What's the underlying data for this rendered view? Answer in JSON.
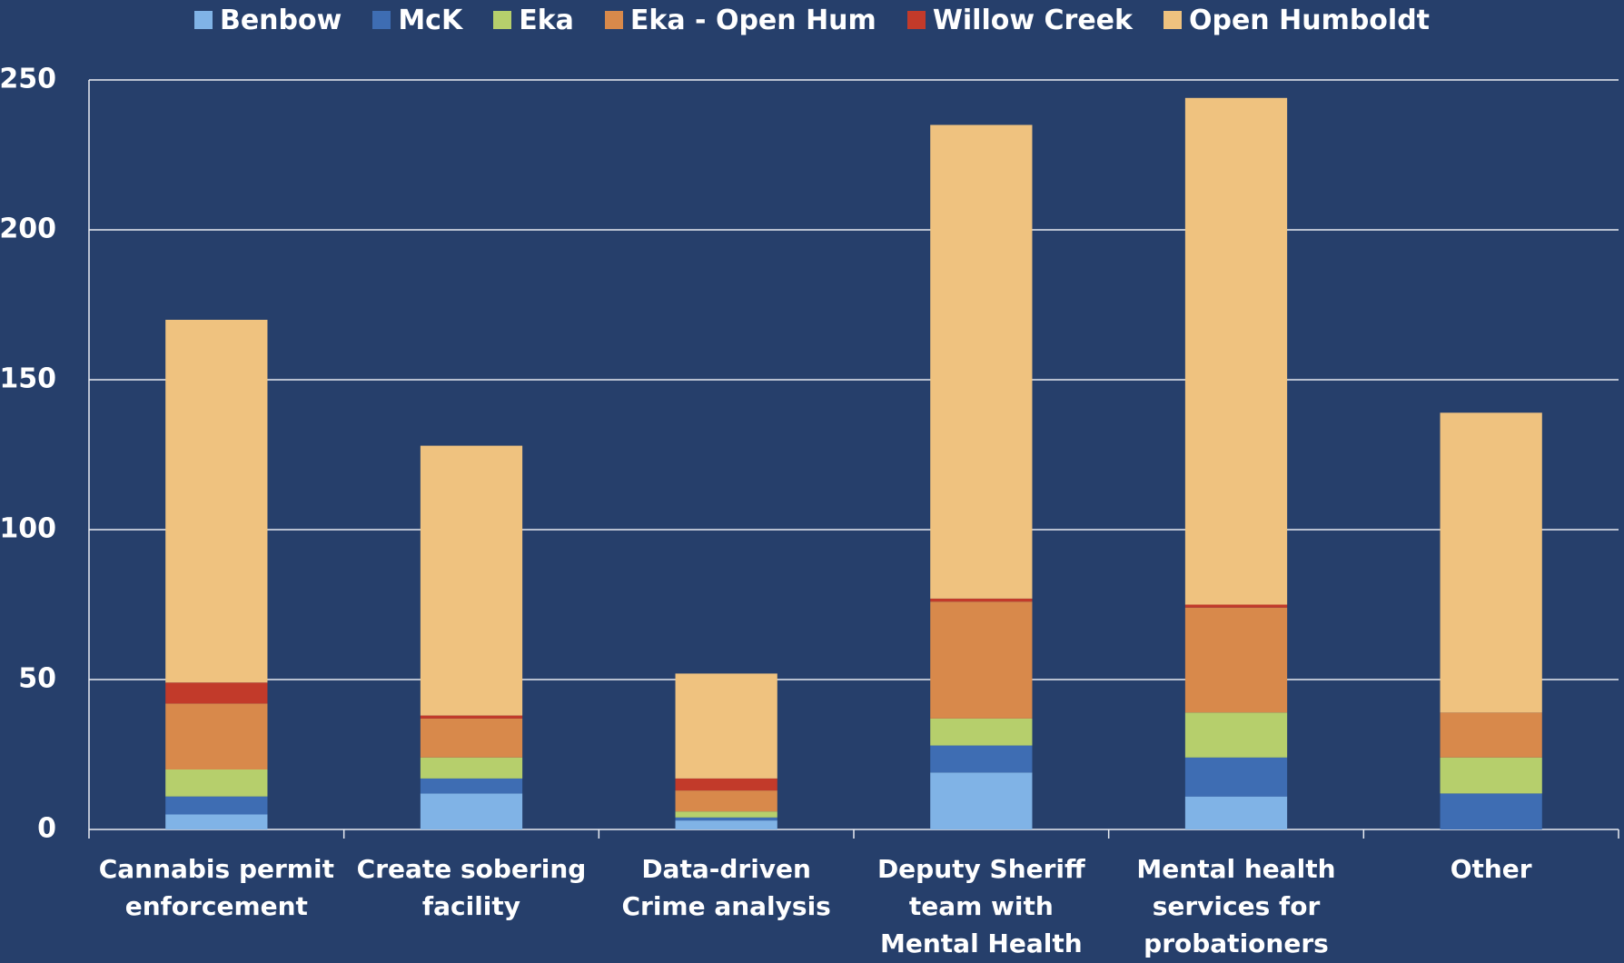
{
  "chart_data": {
    "type": "stacked_bar",
    "categories": [
      "Cannabis permit enforcement",
      "Create sobering facility",
      "Data-driven Crime analysis",
      "Deputy Sheriff team with Mental Health",
      "Mental health services for probationers",
      "Other"
    ],
    "series": [
      {
        "name": "Benbow",
        "color": "#80b3e6",
        "values": [
          5,
          12,
          3,
          19,
          11,
          0
        ]
      },
      {
        "name": "McK",
        "color": "#3e6db3",
        "values": [
          6,
          5,
          1,
          9,
          13,
          12
        ]
      },
      {
        "name": "Eka",
        "color": "#b6cf6c",
        "values": [
          9,
          7,
          2,
          9,
          15,
          12
        ]
      },
      {
        "name": "Eka - Open Hum",
        "color": "#d8894b",
        "values": [
          22,
          13,
          7,
          39,
          35,
          15
        ]
      },
      {
        "name": "Willow Creek",
        "color": "#c23a2a",
        "values": [
          7,
          1,
          4,
          1,
          1,
          0
        ]
      },
      {
        "name": "Open Humboldt",
        "color": "#efc27f",
        "values": [
          121,
          90,
          35,
          158,
          169,
          100
        ]
      }
    ],
    "ylim": [
      0,
      250
    ],
    "yticks": [
      0,
      50,
      100,
      150,
      200,
      250
    ],
    "grid": true,
    "legend": "top"
  }
}
